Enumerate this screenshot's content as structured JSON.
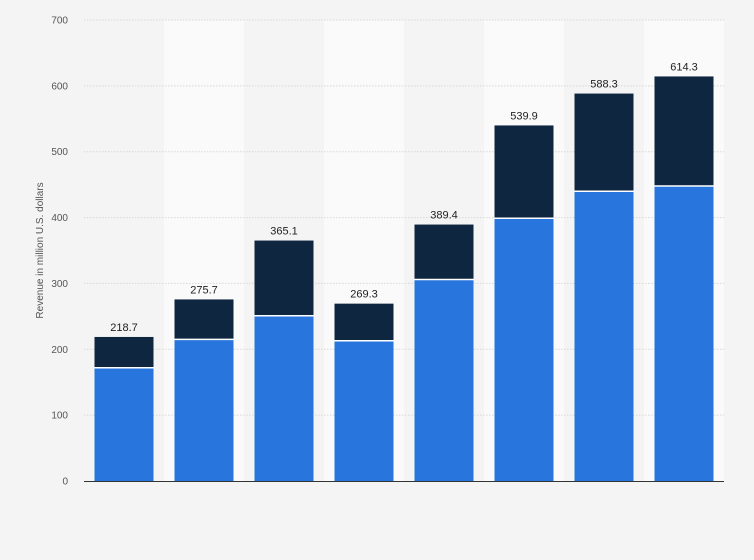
{
  "chart_data": {
    "type": "bar",
    "stacked": true,
    "title": "",
    "xlabel": "",
    "ylabel": "Revenue in million U.S. dollars",
    "ylim": [
      0,
      700
    ],
    "yticks": [
      0,
      100,
      200,
      300,
      400,
      500,
      600,
      700
    ],
    "grid": true,
    "legend": "none",
    "categories": [
      "",
      "",
      "",
      "",
      "",
      "",
      "",
      ""
    ],
    "series": [
      {
        "values": [
          172,
          215,
          251,
          213,
          306,
          399,
          440,
          448
        ],
        "color": "#2876dd"
      },
      {
        "values": [
          46.7,
          60.7,
          114.1,
          56.3,
          83.4,
          140.9,
          148.3,
          166.3
        ],
        "color": "#0f2640"
      }
    ],
    "totals": [
      218.7,
      275.7,
      365.1,
      269.3,
      389.4,
      539.9,
      588.3,
      614.3
    ],
    "total_labels": [
      "218.7",
      "275.7",
      "365.1",
      "269.3",
      "389.4",
      "539.9",
      "588.3",
      "614.3"
    ],
    "colors": {
      "background": "#f4f4f4",
      "plot_band": "#fafafa",
      "grid": "#d7d7d7",
      "axis": "#333333"
    }
  }
}
